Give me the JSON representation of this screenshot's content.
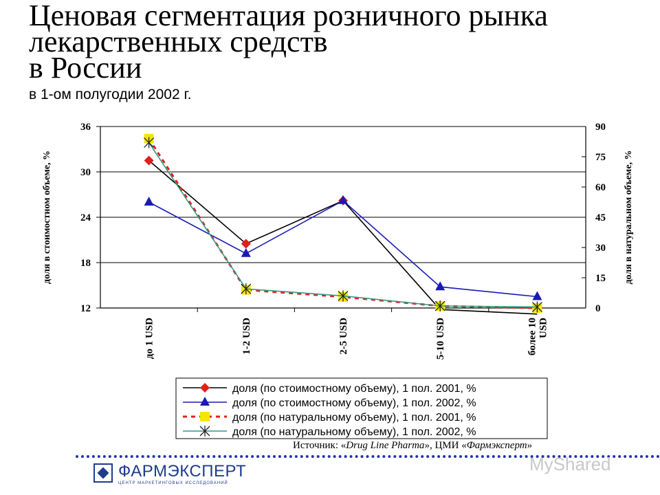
{
  "header": {
    "title": "Ценовая сегментация розничного рынка\nлекарственных средств\nв России",
    "subtitle": "в 1-ом полугодии 2002 г."
  },
  "source": {
    "prefix": "Источник: «",
    "italic": "Drug Line Pharma",
    "middle": "», ЦМИ «",
    "italic2": "Фармэксперт",
    "suffix": "»"
  },
  "logo": {
    "name": "ФАРМЭКСПЕРТ",
    "tagline": "ЦЕНТР МАРКЕТИНГОВЫХ ИССЛЕДОВАНИЙ"
  },
  "watermark": "MyShared",
  "chart_data": {
    "type": "line",
    "categories": [
      "до 1 USD",
      "1-2 USD",
      "2-5 USD",
      "5-10 USD",
      "более 10 USD"
    ],
    "y_left": {
      "label": "доля в стоимостном объеме, %",
      "ylim": [
        12,
        36
      ],
      "ticks": [
        12,
        18,
        24,
        30,
        36
      ]
    },
    "y_right": {
      "label": "доля в натуральном объеме, %",
      "ylim": [
        0,
        90
      ],
      "ticks": [
        0,
        15,
        30,
        45,
        60,
        75,
        90
      ]
    },
    "grid": true,
    "legend_position": "bottom",
    "series": [
      {
        "name": "доля (по стоимостному объему), 1 пол. 2001, %",
        "axis": "left",
        "color": "#000000",
        "marker": "diamond",
        "marker_color": "#e0201a",
        "dash": "",
        "values": [
          31.5,
          20.5,
          26.2,
          11.8,
          11.2
        ]
      },
      {
        "name": "доля (по стоимостному объему), 1 пол. 2002, %",
        "axis": "left",
        "color": "#1a1ab4",
        "marker": "triangle",
        "marker_color": "#1a1ab4",
        "dash": "",
        "values": [
          26.0,
          19.2,
          26.2,
          14.8,
          13.5
        ]
      },
      {
        "name": "доля (по натуральному объему), 1 пол. 2001, %",
        "axis": "right",
        "color": "#e0201a",
        "marker": "square",
        "marker_color": "#f5e600",
        "dash": "6,6",
        "values": [
          84.0,
          9.0,
          5.5,
          1.0,
          0.0
        ]
      },
      {
        "name": "доля (по натуральному объему), 1 пол. 2002, %",
        "axis": "right",
        "color": "#2e9a86",
        "marker": "star",
        "marker_color": "#222222",
        "dash": "",
        "values": [
          82.0,
          9.5,
          6.0,
          1.0,
          0.5
        ]
      }
    ]
  }
}
